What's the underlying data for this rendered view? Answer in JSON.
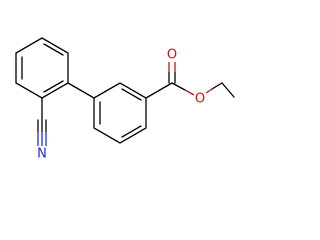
{
  "atoms": [
    {
      "label": "N"
    },
    {
      "label": "O"
    },
    {
      "label": "O"
    }
  ]
}
